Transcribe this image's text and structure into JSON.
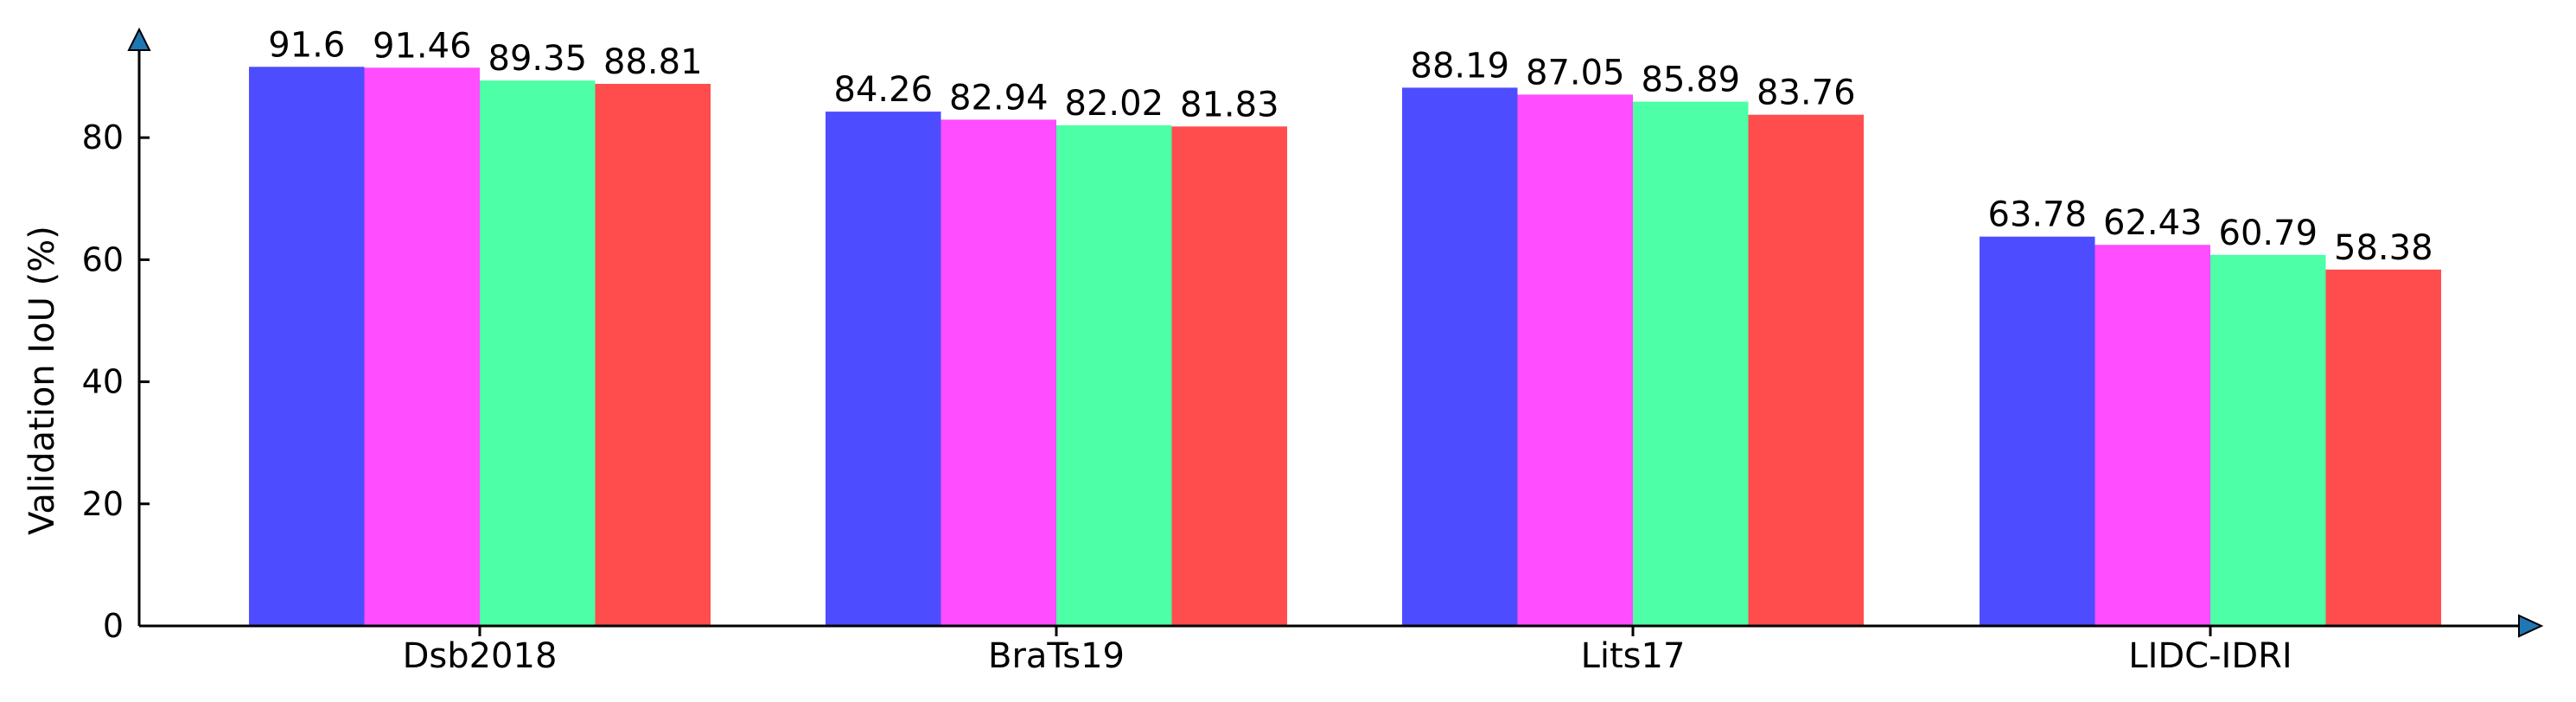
{
  "chart_data": {
    "type": "bar",
    "title": "",
    "xlabel": "",
    "ylabel": "Validation IoU (%)",
    "ylim": [
      0,
      100
    ],
    "yticks": [
      0,
      20,
      40,
      60,
      80
    ],
    "grid": false,
    "categories": [
      "Dsb2018",
      "BraTs19",
      "Lits17",
      "LIDC-IDRI"
    ],
    "series": [
      {
        "color": "#4d4dff",
        "values": [
          91.6,
          84.26,
          88.19,
          63.78
        ]
      },
      {
        "color": "#ff4dff",
        "values": [
          91.46,
          82.94,
          87.05,
          62.43
        ]
      },
      {
        "color": "#4dffa6",
        "values": [
          89.35,
          82.02,
          85.89,
          60.79
        ]
      },
      {
        "color": "#ff4d4d",
        "values": [
          88.81,
          81.83,
          83.76,
          58.38
        ]
      }
    ],
    "axis_arrow_color": "#1f77b4"
  }
}
